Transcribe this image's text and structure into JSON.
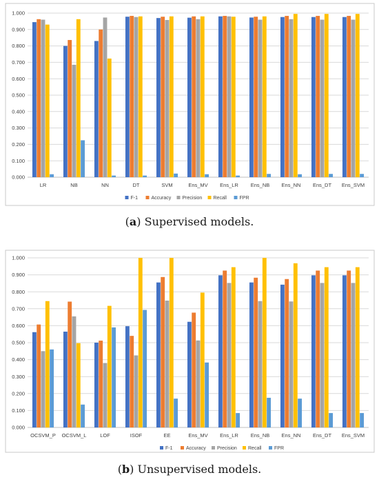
{
  "colors": {
    "F-1": "#4472c4",
    "Accuracy": "#ed7d31",
    "Precision": "#a5a5a5",
    "Recall": "#ffc000",
    "FPR": "#5b9bd5"
  },
  "captions": [
    {
      "label": "a",
      "text": "Supervised models."
    },
    {
      "label": "b",
      "text": "Unsupervised models."
    }
  ],
  "chart_data": [
    {
      "type": "bar",
      "legend_position": "bottom",
      "grid": true,
      "ylim": [
        0,
        1.0
      ],
      "yticks": [
        "0.000",
        "0.100",
        "0.200",
        "0.300",
        "0.400",
        "0.500",
        "0.600",
        "0.700",
        "0.800",
        "0.900",
        "1.000"
      ],
      "categories": [
        "LR",
        "NB",
        "NN",
        "DT",
        "SVM",
        "Ens_MV",
        "Ens_LR",
        "Ens_NB",
        "Ens_NN",
        "Ens_DT",
        "Ens_SVM"
      ],
      "series": [
        {
          "name": "F-1",
          "values": [
            0.945,
            0.8,
            0.83,
            0.978,
            0.97,
            0.972,
            0.98,
            0.973,
            0.976,
            0.976,
            0.976
          ]
        },
        {
          "name": "Accuracy",
          "values": [
            0.963,
            0.836,
            0.9,
            0.983,
            0.978,
            0.98,
            0.983,
            0.978,
            0.983,
            0.983,
            0.983
          ]
        },
        {
          "name": "Precision",
          "values": [
            0.96,
            0.685,
            0.973,
            0.976,
            0.958,
            0.963,
            0.98,
            0.96,
            0.963,
            0.96,
            0.96
          ]
        },
        {
          "name": "Recall",
          "values": [
            0.93,
            0.963,
            0.723,
            0.98,
            0.98,
            0.98,
            0.978,
            0.98,
            0.995,
            0.995,
            0.995
          ]
        },
        {
          "name": "FPR",
          "values": [
            0.018,
            0.225,
            0.01,
            0.01,
            0.022,
            0.018,
            0.01,
            0.02,
            0.018,
            0.02,
            0.02
          ]
        }
      ]
    },
    {
      "type": "bar",
      "legend_position": "top-right",
      "grid": true,
      "ylim": [
        0,
        1.0
      ],
      "yticks": [
        "0.000",
        "0.100",
        "0.200",
        "0.300",
        "0.400",
        "0.500",
        "0.600",
        "0.700",
        "0.800",
        "0.900",
        "1.000"
      ],
      "categories": [
        "OCSVM_P",
        "OCSVM_L",
        "LOF",
        "ISOF",
        "EE",
        "Ens_MV",
        "Ens_LR",
        "Ens_NB",
        "Ens_NN",
        "Ens_DT",
        "Ens_SVM"
      ],
      "series": [
        {
          "name": "F-1",
          "values": [
            0.562,
            0.565,
            0.5,
            0.597,
            0.855,
            0.623,
            0.897,
            0.855,
            0.842,
            0.897,
            0.897
          ]
        },
        {
          "name": "Accuracy",
          "values": [
            0.607,
            0.742,
            0.512,
            0.54,
            0.887,
            0.677,
            0.925,
            0.883,
            0.875,
            0.925,
            0.925
          ]
        },
        {
          "name": "Precision",
          "values": [
            0.45,
            0.655,
            0.38,
            0.425,
            0.748,
            0.513,
            0.852,
            0.745,
            0.743,
            0.852,
            0.852
          ]
        },
        {
          "name": "Recall",
          "values": [
            0.745,
            0.497,
            0.717,
            1.0,
            1.0,
            0.795,
            0.945,
            1.0,
            0.968,
            0.945,
            0.945
          ]
        },
        {
          "name": "FPR",
          "values": [
            0.46,
            0.135,
            0.59,
            0.693,
            0.17,
            0.383,
            0.085,
            0.175,
            0.17,
            0.085,
            0.085
          ]
        }
      ]
    }
  ]
}
